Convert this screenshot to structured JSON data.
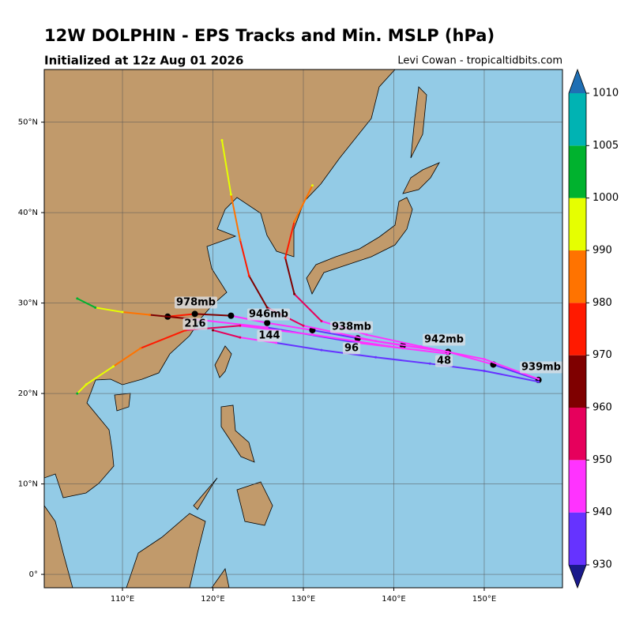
{
  "title": "12W DOLPHIN - EPS Tracks and Min. MSLP (hPa)",
  "subtitle": "Initialized at 12z Aug 01 2026",
  "credit": "Levi Cowan - tropicaltidbits.com",
  "map": {
    "xlim": [
      101.35,
      158.65
    ],
    "ylim": [
      -1.48,
      55.82
    ],
    "xticks": [
      {
        "value": 110,
        "label": "110°E"
      },
      {
        "value": 120,
        "label": "120°E"
      },
      {
        "value": 130,
        "label": "130°E"
      },
      {
        "value": 140,
        "label": "140°E"
      },
      {
        "value": 150,
        "label": "150°E"
      }
    ],
    "yticks": [
      {
        "value": 0,
        "label": "0°"
      },
      {
        "value": 10,
        "label": "10°N"
      },
      {
        "value": 20,
        "label": "20°N"
      },
      {
        "value": 30,
        "label": "30°N"
      },
      {
        "value": 40,
        "label": "40°N"
      },
      {
        "value": 50,
        "label": "50°N"
      }
    ],
    "grid": true,
    "tracks": [
      {
        "lon": [
          156,
          151,
          146,
          141,
          136,
          131,
          126,
          122,
          118,
          115
        ],
        "lat": [
          21.5,
          23.2,
          24.6,
          25.3,
          26.1,
          27,
          27.8,
          28.6,
          28.8,
          28.5
        ],
        "mslp": [
          939,
          942,
          942,
          940,
          938,
          942,
          946,
          960,
          978,
          985
        ]
      },
      {
        "lon": [
          156,
          150,
          144,
          138,
          132,
          127,
          123,
          120
        ],
        "lat": [
          21.3,
          22.5,
          23.3,
          24,
          24.8,
          25.6,
          26.2,
          27
        ],
        "mslp": [
          935,
          934,
          933,
          936,
          938,
          944,
          955,
          968
        ]
      },
      {
        "lon": [
          156,
          150,
          143,
          137,
          132,
          129,
          128,
          129,
          131
        ],
        "lat": [
          21.6,
          23.8,
          25.2,
          26.5,
          28,
          31,
          35,
          39,
          43
        ],
        "mslp": [
          940,
          940,
          941,
          945,
          952,
          965,
          975,
          985,
          995
        ]
      },
      {
        "lon": [
          146,
          138,
          130,
          126,
          124,
          123,
          122,
          121
        ],
        "lat": [
          24.6,
          25.8,
          27.5,
          29.5,
          33,
          37,
          42,
          48
        ],
        "mslp": [
          942,
          940,
          950,
          965,
          978,
          985,
          993,
          998
        ]
      },
      {
        "lon": [
          146,
          136,
          126,
          118,
          113,
          110,
          107,
          105
        ],
        "lat": [
          24.4,
          25.6,
          27.3,
          28.2,
          28.7,
          29,
          29.5,
          30.5
        ],
        "mslp": [
          941,
          939,
          945,
          965,
          982,
          992,
          1000,
          1003
        ]
      },
      {
        "lon": [
          141,
          131,
          123,
          117,
          112,
          109,
          106,
          105
        ],
        "lat": [
          25,
          26.5,
          27.5,
          27,
          25,
          23,
          21,
          20
        ],
        "mslp": [
          940,
          944,
          950,
          975,
          988,
          993,
          998,
          1000
        ]
      }
    ],
    "mslp_labels": [
      "939mb",
      "942mb",
      "938mb",
      "946mb",
      "978mb"
    ],
    "hour_labels": [
      48,
      96,
      144,
      216
    ]
  },
  "colorbar": {
    "bounds": [
      930,
      940,
      950,
      960,
      970,
      980,
      990,
      1000,
      1005,
      1010
    ],
    "colors": [
      "#6633ff",
      "#ff33ff",
      "#e6005c",
      "#7f0000",
      "#ff1a00",
      "#ff7300",
      "#e6ff00",
      "#00b22e",
      "#00b3b3"
    ],
    "under": "#1a1a8c",
    "over": "#1f6fb4"
  }
}
